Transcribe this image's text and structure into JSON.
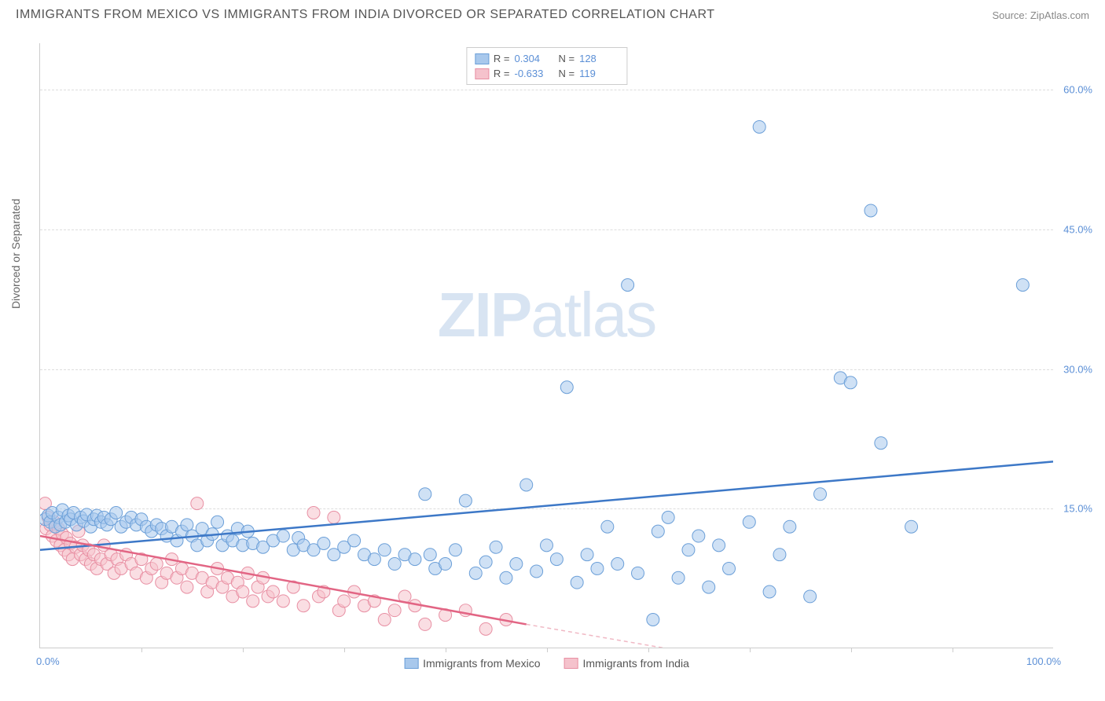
{
  "title": "IMMIGRANTS FROM MEXICO VS IMMIGRANTS FROM INDIA DIVORCED OR SEPARATED CORRELATION CHART",
  "source": "Source: ZipAtlas.com",
  "y_axis_label": "Divorced or Separated",
  "watermark_a": "ZIP",
  "watermark_b": "atlas",
  "chart": {
    "type": "scatter",
    "xlim": [
      0,
      100
    ],
    "ylim": [
      0,
      65
    ],
    "y_ticks": [
      15.0,
      30.0,
      45.0,
      60.0
    ],
    "y_tick_labels": [
      "15.0%",
      "30.0%",
      "45.0%",
      "60.0%"
    ],
    "x_min_label": "0.0%",
    "x_max_label": "100.0%",
    "x_minor_ticks": [
      10,
      20,
      30,
      40,
      50,
      60,
      70,
      80,
      90
    ],
    "grid_color": "#dddddd",
    "axis_color": "#cccccc",
    "marker_radius": 8,
    "marker_opacity": 0.55,
    "series": [
      {
        "name": "Immigrants from Mexico",
        "color_fill": "#a8c8ec",
        "color_stroke": "#6b9fd8",
        "R": "0.304",
        "N": "128",
        "trend": {
          "x1": 0,
          "y1": 10.5,
          "x2": 100,
          "y2": 20.0,
          "color": "#3d78c7",
          "width": 2.5
        },
        "points": [
          [
            0.5,
            13.8
          ],
          [
            0.8,
            14.2
          ],
          [
            1.0,
            13.5
          ],
          [
            1.2,
            14.5
          ],
          [
            1.5,
            13.0
          ],
          [
            1.8,
            14.0
          ],
          [
            2.0,
            13.2
          ],
          [
            2.2,
            14.8
          ],
          [
            2.5,
            13.5
          ],
          [
            2.8,
            14.2
          ],
          [
            3.0,
            13.8
          ],
          [
            3.3,
            14.5
          ],
          [
            3.6,
            13.2
          ],
          [
            4.0,
            14.0
          ],
          [
            4.3,
            13.6
          ],
          [
            4.6,
            14.3
          ],
          [
            5.0,
            13.0
          ],
          [
            5.3,
            13.8
          ],
          [
            5.6,
            14.2
          ],
          [
            6.0,
            13.5
          ],
          [
            6.3,
            14.0
          ],
          [
            6.6,
            13.2
          ],
          [
            7.0,
            13.8
          ],
          [
            7.5,
            14.5
          ],
          [
            8.0,
            13.0
          ],
          [
            8.5,
            13.5
          ],
          [
            9.0,
            14.0
          ],
          [
            9.5,
            13.2
          ],
          [
            10.0,
            13.8
          ],
          [
            10.5,
            13.0
          ],
          [
            11.0,
            12.5
          ],
          [
            11.5,
            13.2
          ],
          [
            12.0,
            12.8
          ],
          [
            12.5,
            12.0
          ],
          [
            13.0,
            13.0
          ],
          [
            13.5,
            11.5
          ],
          [
            14.0,
            12.5
          ],
          [
            14.5,
            13.2
          ],
          [
            15.0,
            12.0
          ],
          [
            15.5,
            11.0
          ],
          [
            16.0,
            12.8
          ],
          [
            16.5,
            11.5
          ],
          [
            17.0,
            12.2
          ],
          [
            17.5,
            13.5
          ],
          [
            18.0,
            11.0
          ],
          [
            18.5,
            12.0
          ],
          [
            19.0,
            11.5
          ],
          [
            19.5,
            12.8
          ],
          [
            20.0,
            11.0
          ],
          [
            20.5,
            12.5
          ],
          [
            21.0,
            11.2
          ],
          [
            22.0,
            10.8
          ],
          [
            23.0,
            11.5
          ],
          [
            24.0,
            12.0
          ],
          [
            25.0,
            10.5
          ],
          [
            25.5,
            11.8
          ],
          [
            26.0,
            11.0
          ],
          [
            27.0,
            10.5
          ],
          [
            28.0,
            11.2
          ],
          [
            29.0,
            10.0
          ],
          [
            30.0,
            10.8
          ],
          [
            31.0,
            11.5
          ],
          [
            32.0,
            10.0
          ],
          [
            33.0,
            9.5
          ],
          [
            34.0,
            10.5
          ],
          [
            35.0,
            9.0
          ],
          [
            36.0,
            10.0
          ],
          [
            37.0,
            9.5
          ],
          [
            38.0,
            16.5
          ],
          [
            38.5,
            10.0
          ],
          [
            39.0,
            8.5
          ],
          [
            40.0,
            9.0
          ],
          [
            41.0,
            10.5
          ],
          [
            42.0,
            15.8
          ],
          [
            43.0,
            8.0
          ],
          [
            44.0,
            9.2
          ],
          [
            45.0,
            10.8
          ],
          [
            46.0,
            7.5
          ],
          [
            47.0,
            9.0
          ],
          [
            48.0,
            17.5
          ],
          [
            49.0,
            8.2
          ],
          [
            50.0,
            11.0
          ],
          [
            51.0,
            9.5
          ],
          [
            52.0,
            28.0
          ],
          [
            53.0,
            7.0
          ],
          [
            54.0,
            10.0
          ],
          [
            55.0,
            8.5
          ],
          [
            56.0,
            13.0
          ],
          [
            57.0,
            9.0
          ],
          [
            58.0,
            39.0
          ],
          [
            59.0,
            8.0
          ],
          [
            60.5,
            3.0
          ],
          [
            61.0,
            12.5
          ],
          [
            62.0,
            14.0
          ],
          [
            63.0,
            7.5
          ],
          [
            64.0,
            10.5
          ],
          [
            65.0,
            12.0
          ],
          [
            66.0,
            6.5
          ],
          [
            67.0,
            11.0
          ],
          [
            68.0,
            8.5
          ],
          [
            70.0,
            13.5
          ],
          [
            71.0,
            56.0
          ],
          [
            72.0,
            6.0
          ],
          [
            73.0,
            10.0
          ],
          [
            74.0,
            13.0
          ],
          [
            76.0,
            5.5
          ],
          [
            77.0,
            16.5
          ],
          [
            79.0,
            29.0
          ],
          [
            80.0,
            28.5
          ],
          [
            82.0,
            47.0
          ],
          [
            83.0,
            22.0
          ],
          [
            86.0,
            13.0
          ],
          [
            97.0,
            39.0
          ]
        ]
      },
      {
        "name": "Immigrants from India",
        "color_fill": "#f5c2cc",
        "color_stroke": "#e88fa3",
        "R": "-0.633",
        "N": "119",
        "trend": {
          "x1": 0,
          "y1": 12.0,
          "x2": 48,
          "y2": 2.5,
          "color": "#e26584",
          "width": 2.5
        },
        "trend_ext": {
          "x1": 48,
          "y1": 2.5,
          "x2": 72,
          "y2": -2.0,
          "color": "#f0b8c4",
          "dash": "5,4"
        },
        "points": [
          [
            0.5,
            15.5
          ],
          [
            0.6,
            12.8
          ],
          [
            0.8,
            14.0
          ],
          [
            1.0,
            13.2
          ],
          [
            1.2,
            12.0
          ],
          [
            1.4,
            13.5
          ],
          [
            1.6,
            11.5
          ],
          [
            1.8,
            12.8
          ],
          [
            2.0,
            11.0
          ],
          [
            2.2,
            12.2
          ],
          [
            2.4,
            10.5
          ],
          [
            2.6,
            11.8
          ],
          [
            2.8,
            10.0
          ],
          [
            3.0,
            11.2
          ],
          [
            3.2,
            9.5
          ],
          [
            3.5,
            10.8
          ],
          [
            3.8,
            12.5
          ],
          [
            4.0,
            10.0
          ],
          [
            4.2,
            11.0
          ],
          [
            4.5,
            9.5
          ],
          [
            4.8,
            10.5
          ],
          [
            5.0,
            9.0
          ],
          [
            5.3,
            10.0
          ],
          [
            5.6,
            8.5
          ],
          [
            6.0,
            9.5
          ],
          [
            6.3,
            11.0
          ],
          [
            6.6,
            9.0
          ],
          [
            7.0,
            10.0
          ],
          [
            7.3,
            8.0
          ],
          [
            7.6,
            9.5
          ],
          [
            8.0,
            8.5
          ],
          [
            8.5,
            10.0
          ],
          [
            9.0,
            9.0
          ],
          [
            9.5,
            8.0
          ],
          [
            10.0,
            9.5
          ],
          [
            10.5,
            7.5
          ],
          [
            11.0,
            8.5
          ],
          [
            11.5,
            9.0
          ],
          [
            12.0,
            7.0
          ],
          [
            12.5,
            8.0
          ],
          [
            13.0,
            9.5
          ],
          [
            13.5,
            7.5
          ],
          [
            14.0,
            8.5
          ],
          [
            14.5,
            6.5
          ],
          [
            15.0,
            8.0
          ],
          [
            15.5,
            15.5
          ],
          [
            16.0,
            7.5
          ],
          [
            16.5,
            6.0
          ],
          [
            17.0,
            7.0
          ],
          [
            17.5,
            8.5
          ],
          [
            18.0,
            6.5
          ],
          [
            18.5,
            7.5
          ],
          [
            19.0,
            5.5
          ],
          [
            19.5,
            7.0
          ],
          [
            20.0,
            6.0
          ],
          [
            20.5,
            8.0
          ],
          [
            21.0,
            5.0
          ],
          [
            21.5,
            6.5
          ],
          [
            22.0,
            7.5
          ],
          [
            22.5,
            5.5
          ],
          [
            23.0,
            6.0
          ],
          [
            24.0,
            5.0
          ],
          [
            25.0,
            6.5
          ],
          [
            26.0,
            4.5
          ],
          [
            27.0,
            14.5
          ],
          [
            27.5,
            5.5
          ],
          [
            28.0,
            6.0
          ],
          [
            29.0,
            14.0
          ],
          [
            29.5,
            4.0
          ],
          [
            30.0,
            5.0
          ],
          [
            31.0,
            6.0
          ],
          [
            32.0,
            4.5
          ],
          [
            33.0,
            5.0
          ],
          [
            34.0,
            3.0
          ],
          [
            35.0,
            4.0
          ],
          [
            36.0,
            5.5
          ],
          [
            37.0,
            4.5
          ],
          [
            38.0,
            2.5
          ],
          [
            40.0,
            3.5
          ],
          [
            42.0,
            4.0
          ],
          [
            44.0,
            2.0
          ],
          [
            46.0,
            3.0
          ]
        ]
      }
    ],
    "legend_bottom": [
      {
        "label": "Immigrants from Mexico",
        "fill": "#a8c8ec",
        "stroke": "#6b9fd8"
      },
      {
        "label": "Immigrants from India",
        "fill": "#f5c2cc",
        "stroke": "#e88fa3"
      }
    ]
  }
}
